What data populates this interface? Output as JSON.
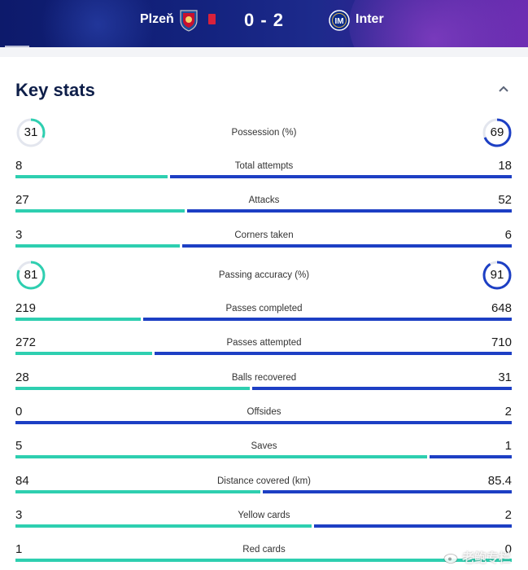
{
  "match": {
    "home_team": "Plzeň",
    "away_team": "Inter",
    "score": "0 - 2",
    "home_color": "#2ecfb0",
    "away_color": "#1d3fc4"
  },
  "section": {
    "title": "Key stats"
  },
  "stats": [
    {
      "label": "Possession (%)",
      "home": "31",
      "away": "69",
      "type": "ring",
      "home_share": 0.31,
      "away_share": 0.69
    },
    {
      "label": "Total attempts",
      "home": "8",
      "away": "18",
      "type": "bar",
      "home_share": 0.308
    },
    {
      "label": "Attacks",
      "home": "27",
      "away": "52",
      "type": "bar",
      "home_share": 0.342
    },
    {
      "label": "Corners taken",
      "home": "3",
      "away": "6",
      "type": "bar",
      "home_share": 0.333
    },
    {
      "label": "Passing accuracy (%)",
      "home": "81",
      "away": "91",
      "type": "ring",
      "home_share": 0.81,
      "away_share": 0.91
    },
    {
      "label": "Passes completed",
      "home": "219",
      "away": "648",
      "type": "bar",
      "home_share": 0.253
    },
    {
      "label": "Passes attempted",
      "home": "272",
      "away": "710",
      "type": "bar",
      "home_share": 0.277
    },
    {
      "label": "Balls recovered",
      "home": "28",
      "away": "31",
      "type": "bar",
      "home_share": 0.475
    },
    {
      "label": "Offsides",
      "home": "0",
      "away": "2",
      "type": "bar",
      "home_share": 0.0
    },
    {
      "label": "Saves",
      "home": "5",
      "away": "1",
      "type": "bar",
      "home_share": 0.833
    },
    {
      "label": "Distance covered (km)",
      "home": "84",
      "away": "85.4",
      "type": "bar",
      "home_share": 0.496
    },
    {
      "label": "Yellow cards",
      "home": "3",
      "away": "2",
      "type": "bar",
      "home_share": 0.6
    },
    {
      "label": "Red cards",
      "home": "1",
      "away": "0",
      "type": "bar",
      "home_share": 1.0
    }
  ],
  "icons": {
    "home_crest": "plzen-crest-icon",
    "away_crest": "inter-crest-icon",
    "red_card": "red-card-icon",
    "collapse": "chevron-up-icon",
    "weibo": "weibo-icon"
  },
  "watermark": "老鲍专栏"
}
